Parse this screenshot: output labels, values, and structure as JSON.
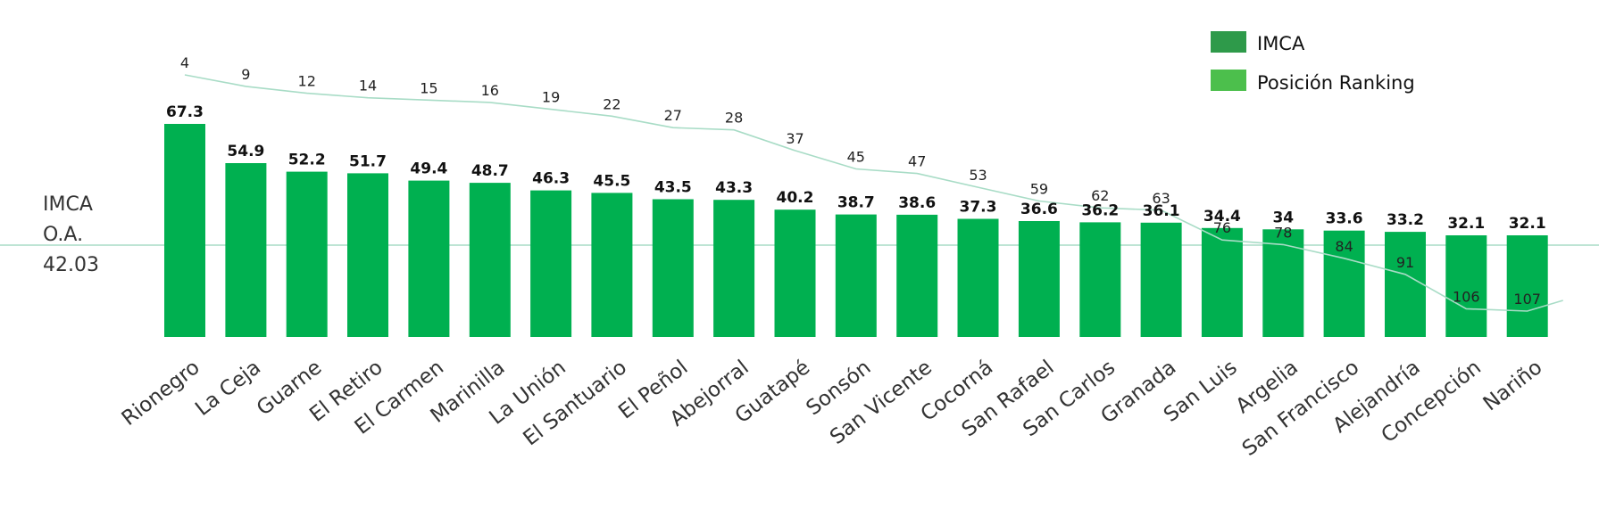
{
  "chart_data": {
    "type": "bar",
    "categories": [
      "Rionegro",
      "La Ceja",
      "Guarne",
      "El Retiro",
      "El Carmen",
      "Marinilla",
      "La Unión",
      "El Santuario",
      "El Peñol",
      "Abejorral",
      "Guatapé",
      "Sonsón",
      "San Vicente",
      "Cocorná",
      "San Rafael",
      "San Carlos",
      "Granada",
      "San Luis",
      "Argelia",
      "San Francisco",
      "Alejandría",
      "Concepción",
      "Nariño"
    ],
    "series": [
      {
        "name": "IMCA",
        "type": "bar",
        "color": "#00b050",
        "values": [
          67.3,
          54.9,
          52.2,
          51.7,
          49.4,
          48.7,
          46.3,
          45.5,
          43.5,
          43.3,
          40.2,
          38.7,
          38.6,
          37.3,
          36.6,
          36.2,
          36.1,
          34.4,
          34,
          33.6,
          33.2,
          32.1,
          32.1
        ]
      },
      {
        "name": "Posición Ranking",
        "type": "line",
        "color": "#a8dcc6",
        "values": [
          4,
          9,
          12,
          14,
          15,
          16,
          19,
          22,
          27,
          28,
          37,
          45,
          47,
          53,
          59,
          62,
          63,
          76,
          78,
          84,
          91,
          106,
          107
        ]
      }
    ],
    "reference_line": {
      "label_lines": [
        "IMCA",
        "O.A.",
        "42.03"
      ],
      "value": 42.03
    },
    "legend": {
      "position": "top-right",
      "items": [
        {
          "label": "IMCA",
          "color": "#2e9a4a"
        },
        {
          "label": "Posición Ranking",
          "color": "#4cbf4c"
        }
      ]
    },
    "value_labels_imca": [
      "67.3",
      "54.9",
      "52.2",
      "51.7",
      "49.4",
      "48.7",
      "46.3",
      "45.5",
      "43.5",
      "43.3",
      "40.2",
      "38.7",
      "38.6",
      "37.3",
      "36.6",
      "36.2",
      "36.1",
      "34.4",
      "34",
      "33.6",
      "33.2",
      "32.1",
      "32.1"
    ],
    "value_labels_rank": [
      "4",
      "9",
      "12",
      "14",
      "15",
      "16",
      "19",
      "22",
      "27",
      "28",
      "37",
      "45",
      "47",
      "53",
      "59",
      "62",
      "63",
      "76",
      "78",
      "84",
      "91",
      "106",
      "107"
    ],
    "grid": false
  }
}
